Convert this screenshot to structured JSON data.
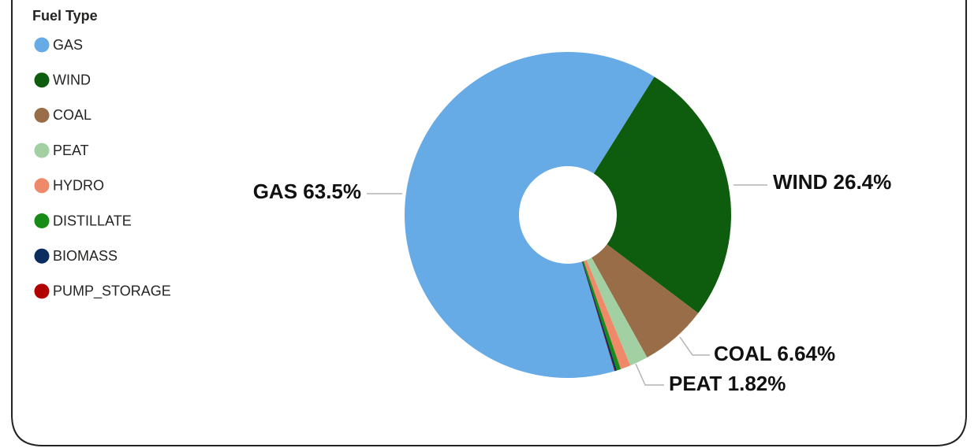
{
  "chart_data": {
    "type": "donut",
    "legend_title": "Fuel Type",
    "categories": [
      "GAS",
      "WIND",
      "COAL",
      "PEAT",
      "HYDRO",
      "DISTILLATE",
      "BIOMASS",
      "PUMP_STORAGE"
    ],
    "values": [
      63.5,
      26.4,
      6.64,
      1.82,
      1.0,
      0.4,
      0.2,
      0.04
    ],
    "value_labels": [
      "GAS 63.5%",
      "WIND 26.4%",
      "COAL 6.64%",
      "PEAT 1.82%",
      null,
      null,
      null,
      null
    ],
    "colors": [
      "#66abe6",
      "#0e5c0e",
      "#9a6d49",
      "#a3d0a3",
      "#ee8a6a",
      "#168b16",
      "#0b2c5e",
      "#b00000"
    ],
    "legend": "top-left"
  }
}
